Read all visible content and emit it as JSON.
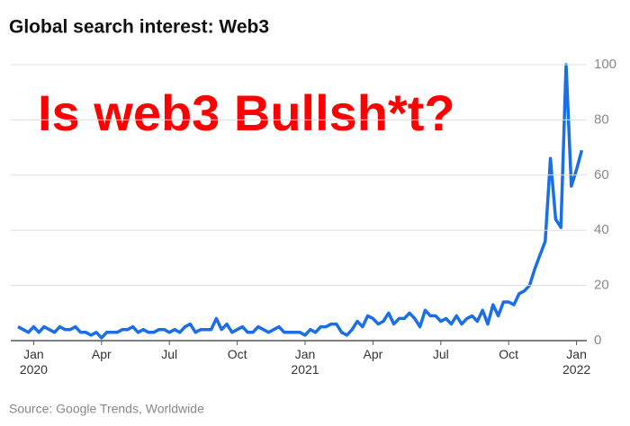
{
  "chart_data": {
    "type": "line",
    "title": "Global search interest: Web3",
    "annotation": "Is web3 Bullsh*t?",
    "source": "Source: Google Trends, Worldwide",
    "categories": [
      null,
      null,
      null,
      "Jan 2020",
      null,
      null,
      null,
      null,
      null,
      null,
      null,
      null,
      null,
      null,
      null,
      null,
      "Apr",
      null,
      null,
      null,
      null,
      null,
      null,
      null,
      null,
      null,
      null,
      null,
      null,
      "Jul",
      null,
      null,
      null,
      null,
      null,
      null,
      null,
      null,
      null,
      null,
      null,
      null,
      "Oct",
      null,
      null,
      null,
      null,
      null,
      null,
      null,
      null,
      null,
      null,
      null,
      null,
      "Jan 2021",
      null,
      null,
      null,
      null,
      null,
      null,
      null,
      null,
      null,
      null,
      null,
      null,
      "Apr",
      null,
      null,
      null,
      null,
      null,
      null,
      null,
      null,
      null,
      null,
      null,
      null,
      "Jul",
      null,
      null,
      null,
      null,
      null,
      null,
      null,
      null,
      null,
      null,
      null,
      null,
      "Oct",
      null,
      null,
      null,
      null,
      null,
      null,
      null,
      null,
      null,
      null,
      null,
      null,
      "Jan 2022",
      null
    ],
    "series": [
      {
        "name": "Web3",
        "color": "#1a6fe8",
        "values": [
          5,
          4,
          3,
          5,
          3,
          5,
          4,
          3,
          5,
          4,
          4,
          5,
          3,
          3,
          2,
          3,
          1,
          3,
          3,
          3,
          4,
          4,
          5,
          3,
          4,
          3,
          3,
          4,
          4,
          3,
          4,
          3,
          5,
          6,
          3,
          4,
          4,
          4,
          8,
          4,
          6,
          3,
          4,
          5,
          3,
          3,
          5,
          4,
          3,
          4,
          5,
          3,
          3,
          3,
          3,
          2,
          4,
          3,
          5,
          5,
          6,
          6,
          3,
          2,
          4,
          7,
          5,
          9,
          8,
          6,
          7,
          10,
          6,
          8,
          8,
          10,
          8,
          5,
          11,
          9,
          9,
          7,
          8,
          6,
          9,
          6,
          8,
          9,
          7,
          11,
          6,
          13,
          9,
          14,
          14,
          13,
          17,
          18,
          20,
          26,
          31,
          36,
          66,
          44,
          41,
          100,
          56,
          62,
          69
        ]
      }
    ],
    "ylim": [
      0,
      100
    ],
    "yticks": [
      0,
      20,
      40,
      60,
      80,
      100
    ],
    "grid": true
  }
}
